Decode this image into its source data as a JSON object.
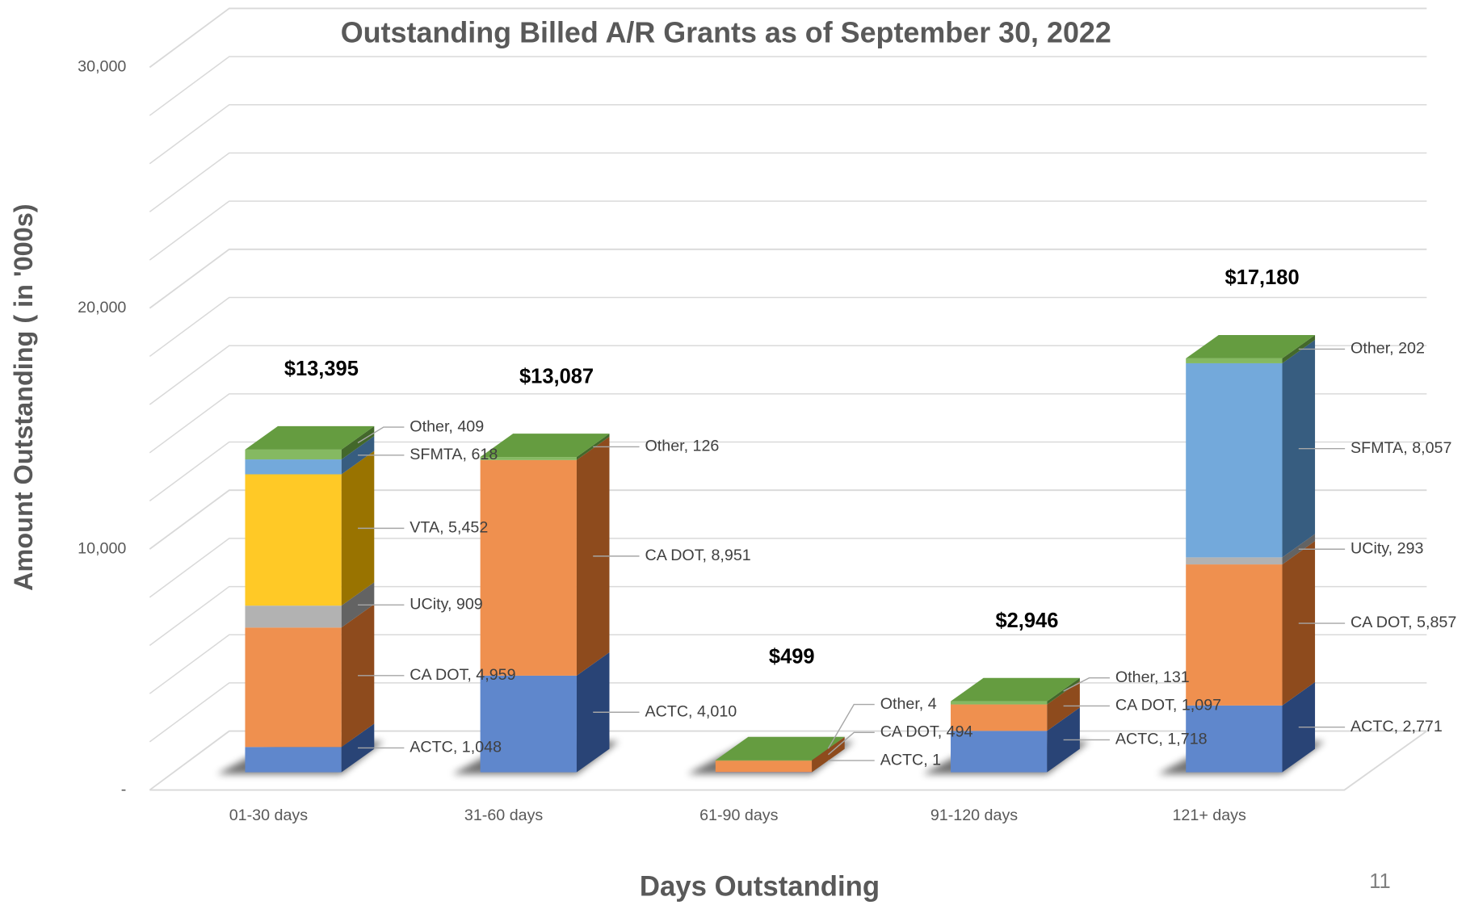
{
  "chart_data": {
    "type": "bar3d_stacked",
    "title": "Outstanding Billed A/R Grants as of September 30, 2022",
    "x_label": "Days Outstanding",
    "y_label": "Amount Outstanding ( in '000s)",
    "categories": [
      "01-30 days",
      "31-60 days",
      "61-90 days",
      "91-120 days",
      "121+ days"
    ],
    "series": [
      {
        "name": "ACTC",
        "color": "#4472c4",
        "values": [
          1048,
          4010,
          1,
          1718,
          2771
        ],
        "value_labels": [
          "ACTC,  1,048",
          "ACTC,  4,010",
          "ACTC,  1",
          "ACTC,  1,718",
          "ACTC,  2,771"
        ]
      },
      {
        "name": "CA DOT",
        "color": "#ed7d31",
        "values": [
          4959,
          8951,
          494,
          1097,
          5857
        ],
        "value_labels": [
          "CA DOT,  4,959",
          "CA DOT,  8,951",
          "CA DOT,  494",
          "CA DOT,  1,097",
          "CA DOT,  5,857"
        ]
      },
      {
        "name": "UCity",
        "color": "#a5a5a5",
        "values": [
          909,
          null,
          null,
          null,
          293
        ],
        "value_labels": [
          "UCity,  909",
          null,
          null,
          null,
          "UCity,  293"
        ]
      },
      {
        "name": "VTA",
        "color": "#ffc000",
        "values": [
          5452,
          null,
          null,
          null,
          null
        ],
        "value_labels": [
          "VTA,  5,452",
          null,
          null,
          null,
          null
        ]
      },
      {
        "name": "SFMTA",
        "color": "#5b9bd5",
        "values": [
          618,
          null,
          null,
          null,
          8057
        ],
        "value_labels": [
          "SFMTA,  618",
          null,
          null,
          null,
          "SFMTA,  8,057"
        ]
      },
      {
        "name": "Other",
        "color": "#70ad47",
        "values": [
          409,
          126,
          4,
          131,
          202
        ],
        "value_labels": [
          "Other,  409",
          "Other,  126",
          "Other,  4",
          "Other,  131",
          "Other,  202"
        ]
      }
    ],
    "totals": [
      13395,
      13087,
      499,
      2946,
      17180
    ],
    "total_labels": [
      "$13,395",
      "$13,087",
      "$499",
      "$2,946",
      "$17,180"
    ],
    "ylim": [
      0,
      30000
    ],
    "yticks": [
      {
        "value": 0,
        "label": "-"
      },
      {
        "value": 10000,
        "label": "10,000"
      },
      {
        "value": 20000,
        "label": "20,000"
      },
      {
        "value": 30000,
        "label": "30,000"
      }
    ],
    "minor_yticks": [
      2000,
      4000,
      6000,
      8000,
      12000,
      14000,
      16000,
      18000,
      22000,
      24000,
      26000,
      28000
    ],
    "grid": true
  },
  "page_number": "11"
}
